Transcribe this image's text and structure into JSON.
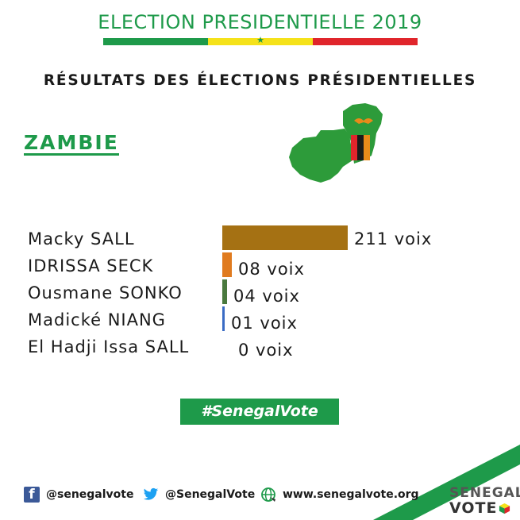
{
  "header": {
    "title": "ELECTION PRESIDENTIELLE 2019",
    "subtitle": "RÉSULTATS DES ÉLECTIONS PRÉSIDENTIELLES"
  },
  "country": "ZAMBIE",
  "chart_data": {
    "type": "bar",
    "orientation": "horizontal",
    "categories": [
      "Macky SALL",
      "IDRISSA SECK",
      "Ousmane SONKO",
      "Madické NIANG",
      "El Hadji Issa SALL"
    ],
    "values": [
      211,
      8,
      4,
      1,
      0
    ],
    "value_labels": [
      "211 voix",
      "08 voix",
      "04 voix",
      "01 voix",
      "0 voix"
    ],
    "colors": [
      "#a57113",
      "#e07b1f",
      "#4a7a3f",
      "#3a6bc4",
      "#999999"
    ],
    "xlim": [
      0,
      211
    ],
    "title": "",
    "xlabel": "",
    "ylabel": ""
  },
  "hashtag": "#SenegalVote",
  "footer": {
    "facebook": "@senegalvote",
    "twitter": "@SenegalVote",
    "website": "www.senegalvote.org",
    "brand_line1": "SENEGAL",
    "brand_line2": "VOTE"
  },
  "colors": {
    "green": "#1e9a4a",
    "yellow": "#f5e21a",
    "red": "#e0252b"
  },
  "icons": [
    "flag-star-icon",
    "zambia-map-icon",
    "facebook-icon",
    "twitter-icon",
    "globe-icon",
    "ballot-cube-icon"
  ]
}
